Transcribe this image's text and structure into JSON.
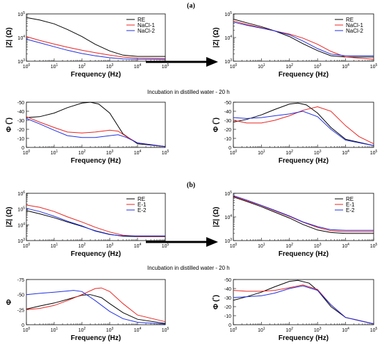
{
  "figure": {
    "panels": [
      "(a)",
      "(b)"
    ],
    "arrow_label": "Incubation in distilled water - 20 h"
  },
  "colors": {
    "black": "#000000",
    "red": "#e8231f",
    "blue": "#1f2fe0"
  },
  "chart_data": [
    {
      "id": "a-mod-before",
      "type": "line",
      "xlabel": "Frequency (Hz)",
      "ylabel": "|Z| (Ω)",
      "xlog": true,
      "ylog": true,
      "xlim": [
        1,
        100000
      ],
      "ylim": [
        1000,
        100000
      ],
      "xticks": [
        "10^0",
        "10^1",
        "10^2",
        "10^3",
        "10^4",
        "10^5"
      ],
      "yticks": [
        "10^3",
        "10^4",
        "10^5"
      ],
      "legend": "top-right",
      "series": [
        {
          "name": "RE",
          "color": "black",
          "x": [
            1,
            3,
            10,
            30,
            100,
            300,
            1000,
            3000,
            10000,
            100000
          ],
          "y": [
            70000,
            55000,
            38000,
            22000,
            11000,
            5200,
            2700,
            1800,
            1600,
            1600
          ]
        },
        {
          "name": "NaCl-1",
          "color": "red",
          "x": [
            1,
            3,
            10,
            30,
            100,
            300,
            1000,
            3000,
            10000,
            100000
          ],
          "y": [
            11000,
            7600,
            5300,
            3900,
            2900,
            2300,
            1800,
            1500,
            1350,
            1300
          ]
        },
        {
          "name": "NaCl-2",
          "color": "blue",
          "x": [
            1,
            3,
            10,
            30,
            100,
            300,
            1000,
            3000,
            10000,
            100000
          ],
          "y": [
            8500,
            6000,
            4100,
            2900,
            2100,
            1700,
            1400,
            1250,
            1200,
            1200
          ]
        }
      ]
    },
    {
      "id": "a-mod-after",
      "type": "line",
      "xlabel": "Frequency (Hz)",
      "ylabel": "|Z| (Ω)",
      "xlog": true,
      "ylog": true,
      "xlim": [
        1,
        100000
      ],
      "ylim": [
        1000,
        100000
      ],
      "xticks": [
        "10^0",
        "10^1",
        "10^2",
        "10^3",
        "10^4",
        "10^5"
      ],
      "yticks": [
        "10^3",
        "10^4",
        "10^5"
      ],
      "legend": "top-right",
      "series": [
        {
          "name": "RE",
          "color": "black",
          "x": [
            1,
            3,
            10,
            30,
            100,
            300,
            1000,
            3000,
            10000,
            100000
          ],
          "y": [
            60000,
            42000,
            29000,
            19000,
            11000,
            5500,
            2800,
            1700,
            1500,
            1500
          ]
        },
        {
          "name": "NaCl-1",
          "color": "red",
          "x": [
            1,
            3,
            10,
            30,
            100,
            300,
            1000,
            3000,
            10000,
            100000
          ],
          "y": [
            50000,
            36000,
            26000,
            19000,
            14000,
            9500,
            5200,
            2600,
            1500,
            1200
          ]
        },
        {
          "name": "NaCl-2",
          "color": "blue",
          "x": [
            1,
            3,
            10,
            30,
            100,
            300,
            1000,
            3000,
            10000,
            100000
          ],
          "y": [
            45000,
            33000,
            25000,
            19000,
            13000,
            7200,
            3400,
            2000,
            1700,
            1700
          ]
        }
      ]
    },
    {
      "id": "a-phase-before",
      "type": "line",
      "xlabel": "Frequency (Hz)",
      "ylabel": "Φ (˚)",
      "xlog": true,
      "ylog": false,
      "xlim": [
        1,
        100000
      ],
      "ylim": [
        0,
        -50
      ],
      "xticks": [
        "10^0",
        "10^1",
        "10^2",
        "10^3",
        "10^4",
        "10^5"
      ],
      "yticks": [
        "0",
        "-10",
        "-20",
        "-30",
        "-40",
        "-50"
      ],
      "series": [
        {
          "name": "RE",
          "color": "black",
          "x": [
            1,
            3,
            10,
            30,
            100,
            200,
            400,
            1000,
            3000,
            10000,
            100000
          ],
          "y": [
            -33,
            -34,
            -38,
            -44,
            -49,
            -50,
            -48,
            -38,
            -15,
            -4,
            -1
          ]
        },
        {
          "name": "NaCl-1",
          "color": "red",
          "x": [
            1,
            3,
            10,
            30,
            100,
            300,
            1000,
            2000,
            4000,
            10000,
            100000
          ],
          "y": [
            -34,
            -28,
            -22,
            -17,
            -16,
            -17,
            -19,
            -18,
            -12,
            -5,
            -1
          ]
        },
        {
          "name": "NaCl-2",
          "color": "blue",
          "x": [
            1,
            3,
            10,
            30,
            100,
            300,
            1000,
            2000,
            4000,
            10000,
            100000
          ],
          "y": [
            -32,
            -26,
            -19,
            -13,
            -11,
            -11,
            -13,
            -14,
            -11,
            -5,
            -1
          ]
        }
      ]
    },
    {
      "id": "a-phase-after",
      "type": "line",
      "xlabel": "Frequency (Hz)",
      "ylabel": "Φ (˚)",
      "xlog": true,
      "ylog": false,
      "xlim": [
        1,
        100000
      ],
      "ylim": [
        0,
        -50
      ],
      "xticks": [
        "10^0",
        "10^1",
        "10^2",
        "10^3",
        "10^4",
        "10^5"
      ],
      "yticks": [
        "0",
        "-10",
        "-20",
        "-30",
        "-40",
        "-50"
      ],
      "series": [
        {
          "name": "RE",
          "color": "black",
          "x": [
            1,
            3,
            10,
            30,
            100,
            200,
            400,
            1000,
            3000,
            10000,
            100000
          ],
          "y": [
            -28,
            -31,
            -36,
            -42,
            -48,
            -49,
            -47,
            -38,
            -22,
            -9,
            -2
          ]
        },
        {
          "name": "NaCl-1",
          "color": "red",
          "x": [
            1,
            3,
            10,
            30,
            100,
            300,
            1000,
            3000,
            10000,
            30000,
            100000
          ],
          "y": [
            -30,
            -27,
            -27,
            -30,
            -35,
            -41,
            -45,
            -40,
            -24,
            -12,
            -4
          ]
        },
        {
          "name": "NaCl-2",
          "color": "blue",
          "x": [
            1,
            3,
            10,
            30,
            100,
            300,
            1000,
            3000,
            10000,
            100000
          ],
          "y": [
            -33,
            -32,
            -33,
            -35,
            -37,
            -40,
            -34,
            -20,
            -8,
            -2
          ]
        }
      ]
    },
    {
      "id": "b-mod-before",
      "type": "line",
      "xlabel": "Frequency (Hz)",
      "ylabel": "|Z| (Ω)",
      "xlog": true,
      "ylog": true,
      "xlim": [
        1,
        100000
      ],
      "ylim": [
        1000,
        1000000
      ],
      "xticks": [
        "10^0",
        "10^1",
        "10^2",
        "10^3",
        "10^4",
        "10^5"
      ],
      "yticks": [
        "10^3",
        "10^4",
        "10^5",
        "10^6"
      ],
      "legend": "top-right",
      "series": [
        {
          "name": "RE",
          "color": "black",
          "x": [
            1,
            3,
            10,
            30,
            100,
            300,
            1000,
            3000,
            10000,
            100000
          ],
          "y": [
            80000,
            50000,
            28000,
            15000,
            8000,
            4200,
            2500,
            1900,
            1800,
            1800
          ]
        },
        {
          "name": "E-1",
          "color": "red",
          "x": [
            1,
            3,
            10,
            30,
            100,
            300,
            1000,
            3000,
            10000,
            100000
          ],
          "y": [
            180000,
            130000,
            70000,
            32000,
            15000,
            7000,
            3500,
            2200,
            1900,
            1900
          ]
        },
        {
          "name": "E-2",
          "color": "blue",
          "x": [
            1,
            3,
            10,
            30,
            100,
            300,
            1000,
            3000,
            10000,
            100000
          ],
          "y": [
            110000,
            70000,
            35000,
            17000,
            8500,
            4000,
            2400,
            2000,
            2000,
            2000
          ]
        }
      ]
    },
    {
      "id": "b-mod-after",
      "type": "line",
      "xlabel": "Frequency (Hz)",
      "ylabel": "|Z| (Ω)",
      "xlog": true,
      "ylog": true,
      "xlim": [
        1,
        100000
      ],
      "ylim": [
        1000,
        100000
      ],
      "xticks": [
        "10^0",
        "10^1",
        "10^2",
        "10^3",
        "10^4",
        "10^5"
      ],
      "yticks": [
        "10^3",
        "10^4",
        "10^5"
      ],
      "legend": "top-right",
      "series": [
        {
          "name": "RE",
          "color": "black",
          "x": [
            1,
            3,
            10,
            30,
            100,
            300,
            1000,
            3000,
            10000,
            100000
          ],
          "y": [
            70000,
            45000,
            27000,
            16000,
            9000,
            4800,
            2800,
            2200,
            2000,
            2000
          ]
        },
        {
          "name": "E-1",
          "color": "red",
          "x": [
            1,
            3,
            10,
            30,
            100,
            300,
            1000,
            3000,
            10000,
            100000
          ],
          "y": [
            75000,
            48000,
            30000,
            18000,
            10500,
            6000,
            3600,
            2600,
            2400,
            2400
          ]
        },
        {
          "name": "E-2",
          "color": "blue",
          "x": [
            1,
            3,
            10,
            30,
            100,
            300,
            1000,
            3000,
            10000,
            100000
          ],
          "y": [
            80000,
            52000,
            31000,
            19000,
            11000,
            6200,
            3900,
            2900,
            2700,
            2700
          ]
        }
      ]
    },
    {
      "id": "b-phase-before",
      "type": "line",
      "xlabel": "Frequency (Hz)",
      "ylabel": "Φ",
      "xlog": true,
      "ylog": false,
      "xlim": [
        1,
        100000
      ],
      "ylim": [
        0,
        -75
      ],
      "xticks": [
        "10^0",
        "10^1",
        "10^2",
        "10^3",
        "10^4",
        "10^5"
      ],
      "yticks": [
        "0",
        "-25",
        "-50",
        "-75"
      ],
      "series": [
        {
          "name": "RE",
          "color": "black",
          "x": [
            1,
            3,
            10,
            30,
            100,
            200,
            500,
            1000,
            3000,
            10000,
            100000
          ],
          "y": [
            -26,
            -31,
            -36,
            -42,
            -49,
            -50,
            -45,
            -35,
            -20,
            -9,
            -2
          ]
        },
        {
          "name": "E-1",
          "color": "red",
          "x": [
            1,
            3,
            10,
            30,
            100,
            300,
            500,
            1000,
            3000,
            10000,
            100000
          ],
          "y": [
            -25,
            -27,
            -32,
            -40,
            -50,
            -60,
            -61,
            -55,
            -35,
            -16,
            -5
          ]
        },
        {
          "name": "E-2",
          "color": "blue",
          "x": [
            1,
            3,
            10,
            30,
            50,
            100,
            300,
            1000,
            3000,
            10000,
            100000
          ],
          "y": [
            -50,
            -52,
            -54,
            -56,
            -57,
            -55,
            -40,
            -22,
            -10,
            -4,
            -1
          ]
        }
      ]
    },
    {
      "id": "b-phase-after",
      "type": "line",
      "xlabel": "Frequency (Hz)",
      "ylabel": "Φ (˚)",
      "xlog": true,
      "ylog": false,
      "xlim": [
        1,
        100000
      ],
      "ylim": [
        0,
        -50
      ],
      "xticks": [
        "10^0",
        "10^1",
        "10^2",
        "10^3",
        "10^4",
        "10^5"
      ],
      "yticks": [
        "0",
        "-10",
        "-20",
        "-30",
        "-40",
        "-50"
      ],
      "series": [
        {
          "name": "RE",
          "color": "black",
          "x": [
            1,
            3,
            10,
            30,
            100,
            200,
            500,
            1000,
            3000,
            10000,
            100000
          ],
          "y": [
            -27,
            -31,
            -36,
            -42,
            -48,
            -49,
            -46,
            -38,
            -20,
            -8,
            -1
          ]
        },
        {
          "name": "E-1",
          "color": "red",
          "x": [
            1,
            3,
            10,
            30,
            100,
            300,
            1000,
            3000,
            10000,
            100000
          ],
          "y": [
            -38,
            -37,
            -37,
            -38,
            -41,
            -44,
            -39,
            -22,
            -8,
            -1
          ]
        },
        {
          "name": "E-2",
          "color": "blue",
          "x": [
            1,
            3,
            10,
            30,
            100,
            300,
            1000,
            3000,
            10000,
            100000
          ],
          "y": [
            -30,
            -31,
            -32,
            -35,
            -40,
            -43,
            -38,
            -22,
            -8,
            -1
          ]
        }
      ]
    }
  ]
}
